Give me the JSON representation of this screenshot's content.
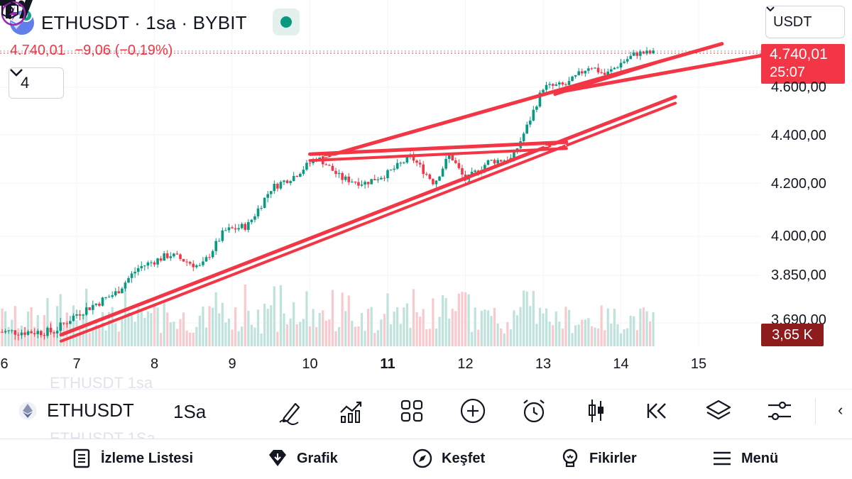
{
  "header": {
    "symbol_line": "ETHUSDT · 1sa · BYBIT",
    "ohlc_price": "4.740,01",
    "ohlc_change": "−9,06 (−0,19%)",
    "collapse_count": "4",
    "currency": "USDT",
    "last_price": "4.740,01",
    "countdown": "25:07",
    "volume_tag": "3,65 K"
  },
  "price_axis": [
    "4.600,00",
    "4.400,00",
    "4.200,00",
    "4.000,00",
    "3.850,00",
    "3.690,00"
  ],
  "time_axis": [
    {
      "label": "6",
      "bold": false
    },
    {
      "label": "7",
      "bold": false
    },
    {
      "label": "8",
      "bold": false
    },
    {
      "label": "9",
      "bold": false
    },
    {
      "label": "10",
      "bold": false
    },
    {
      "label": "11",
      "bold": true
    },
    {
      "label": "12",
      "bold": false
    },
    {
      "label": "13",
      "bold": false
    },
    {
      "label": "14",
      "bold": false
    },
    {
      "label": "15",
      "bold": false
    }
  ],
  "colors": {
    "up": "#089981",
    "down": "#f23645",
    "trendline": "#f23645",
    "volume_up": "#bfe3dc",
    "volume_down": "#f9c9cd",
    "price_tag": "#f23645",
    "volume_tag": "#8e1c1c"
  },
  "chart_data": {
    "type": "candlestick",
    "symbol": "ETHUSDT",
    "interval": "1sa",
    "exchange": "BYBIT",
    "x": [
      "6",
      "7",
      "8",
      "9",
      "10",
      "11",
      "12",
      "13",
      "14",
      "15"
    ],
    "close_series": [
      {
        "day": 6.7,
        "price": 3660
      },
      {
        "day": 7.0,
        "price": 3720
      },
      {
        "day": 7.5,
        "price": 3790
      },
      {
        "day": 7.8,
        "price": 3880
      },
      {
        "day": 8.2,
        "price": 3930
      },
      {
        "day": 8.6,
        "price": 3880
      },
      {
        "day": 8.9,
        "price": 4020
      },
      {
        "day": 9.2,
        "price": 4040
      },
      {
        "day": 9.5,
        "price": 4180
      },
      {
        "day": 9.8,
        "price": 4230
      },
      {
        "day": 10.1,
        "price": 4310
      },
      {
        "day": 10.4,
        "price": 4220
      },
      {
        "day": 10.7,
        "price": 4200
      },
      {
        "day": 11.0,
        "price": 4240
      },
      {
        "day": 11.3,
        "price": 4310
      },
      {
        "day": 11.6,
        "price": 4200
      },
      {
        "day": 11.8,
        "price": 4320
      },
      {
        "day": 12.0,
        "price": 4210
      },
      {
        "day": 12.3,
        "price": 4290
      },
      {
        "day": 12.6,
        "price": 4300
      },
      {
        "day": 12.8,
        "price": 4440
      },
      {
        "day": 13.0,
        "price": 4600
      },
      {
        "day": 13.3,
        "price": 4610
      },
      {
        "day": 13.6,
        "price": 4690
      },
      {
        "day": 13.8,
        "price": 4650
      },
      {
        "day": 14.0,
        "price": 4700
      },
      {
        "day": 14.2,
        "price": 4740
      },
      {
        "day": 14.4,
        "price": 4740
      }
    ],
    "last_price": 4740.01,
    "change": -9.06,
    "change_pct": -0.19,
    "volume_last": "3,65 K",
    "trendlines": [
      {
        "name": "channel-upper",
        "from": {
          "day": 10.2,
          "price": 4310
        },
        "to": {
          "day": 15.3,
          "price": 4780
        }
      },
      {
        "name": "channel-upper-2",
        "from": {
          "day": 13.2,
          "price": 4580
        },
        "to": {
          "day": 15.8,
          "price": 4730
        }
      },
      {
        "name": "support-double",
        "from": {
          "day": 6.8,
          "price": 3650
        },
        "to": {
          "day": 14.7,
          "price": 4560
        }
      },
      {
        "name": "triangle-top",
        "from": {
          "day": 10.0,
          "price": 4320
        },
        "to": {
          "day": 13.3,
          "price": 4370
        }
      }
    ]
  },
  "toolbar": {
    "ghost_top": "ETHUSDT     1sa",
    "ghost_bottom": "ETHUSDT     1Sa",
    "symbol": "ETHUSDT",
    "interval": "1Sa"
  },
  "nav": {
    "watchlist": "İzleme Listesi",
    "chart": "Grafik",
    "explore": "Keşfet",
    "ideas": "Fikirler",
    "menu": "Menü"
  }
}
